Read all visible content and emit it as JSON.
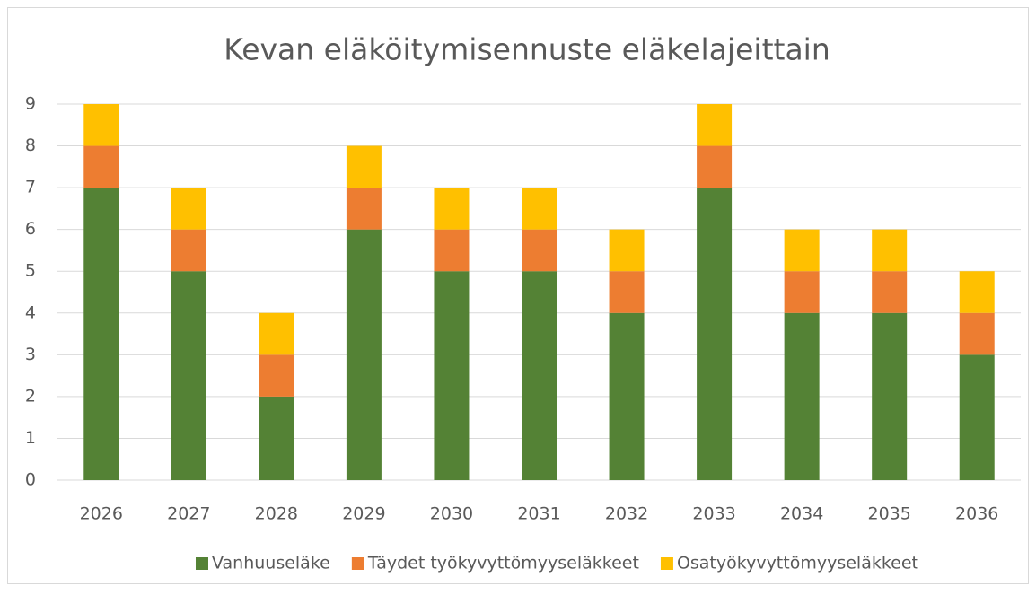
{
  "chart_data": {
    "type": "bar",
    "stacked": true,
    "title": "Kevan eläköitymisennuste eläkelajeittain",
    "categories": [
      "2026",
      "2027",
      "2028",
      "2029",
      "2030",
      "2031",
      "2032",
      "2033",
      "2034",
      "2035",
      "2036"
    ],
    "series": [
      {
        "name": "Vanhuuseläke",
        "color": "#548235",
        "values": [
          7,
          5,
          2,
          6,
          5,
          5,
          4,
          7,
          4,
          4,
          3
        ]
      },
      {
        "name": "Täydet työkyvyttömyyseläkkeet",
        "color": "#ed7d31",
        "values": [
          1,
          1,
          1,
          1,
          1,
          1,
          1,
          1,
          1,
          1,
          1
        ]
      },
      {
        "name": "Osatyökyvyttömyyseläkkeet",
        "color": "#ffc000",
        "values": [
          1,
          1,
          1,
          1,
          1,
          1,
          1,
          1,
          1,
          1,
          1
        ]
      }
    ],
    "ylim": [
      0,
      9
    ],
    "yticks": [
      0,
      1,
      2,
      3,
      4,
      5,
      6,
      7,
      8,
      9
    ],
    "grid": true,
    "legend": "bottom"
  }
}
